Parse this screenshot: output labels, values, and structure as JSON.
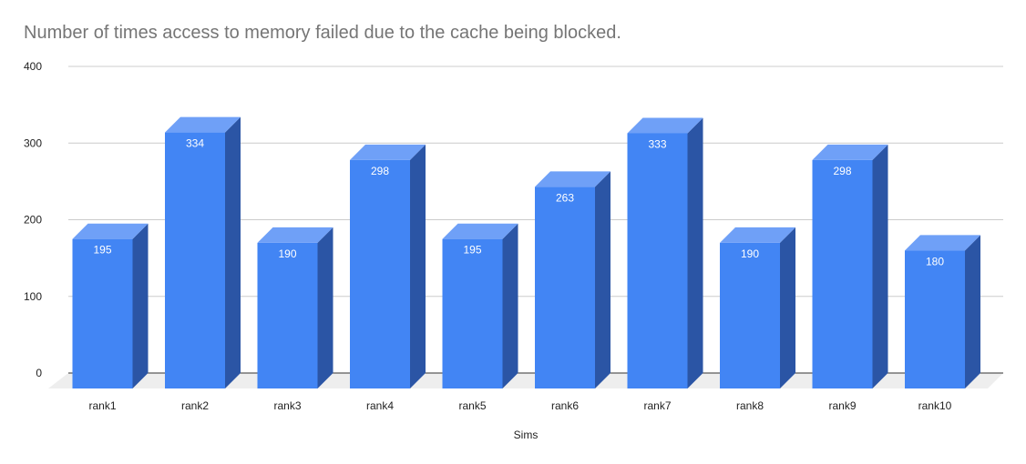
{
  "chart_data": {
    "type": "bar",
    "style": "3d-column",
    "title": "Number of times access to memory failed due to the cache being blocked.",
    "xlabel": "Sims",
    "ylabel": "",
    "categories": [
      "rank1",
      "rank2",
      "rank3",
      "rank4",
      "rank5",
      "rank6",
      "rank7",
      "rank8",
      "rank9",
      "rank10"
    ],
    "series": [
      {
        "values": [
          195,
          334,
          190,
          298,
          195,
          263,
          333,
          190,
          298,
          180
        ]
      }
    ],
    "ylim": [
      0,
      400
    ],
    "yticks": [
      "0",
      "100",
      "200",
      "300",
      "400"
    ],
    "grid": true,
    "data_labels": true,
    "legend": "none",
    "colors": {
      "front": "#4285f4",
      "top": "#6fa0f7",
      "side": "#2b55a5",
      "floor": "#eeeeee",
      "grid": "#cccccc",
      "baseline": "#333333"
    }
  }
}
